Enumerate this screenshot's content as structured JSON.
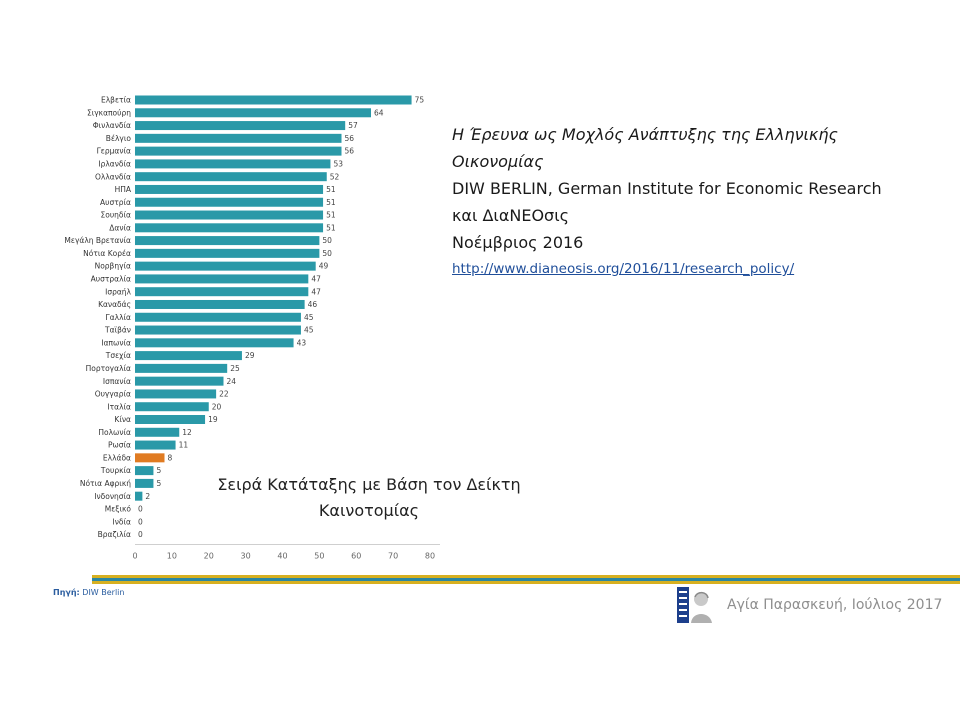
{
  "chart_data": {
    "type": "bar",
    "orientation": "horizontal",
    "categories": [
      "Ελβετία",
      "Σιγκαπούρη",
      "Φινλανδία",
      "Βέλγιο",
      "Γερμανία",
      "Ιρλανδία",
      "Ολλανδία",
      "ΗΠΑ",
      "Αυστρία",
      "Σουηδία",
      "Δανία",
      "Μεγάλη Βρετανία",
      "Νότια Κορέα",
      "Νορβηγία",
      "Αυστραλία",
      "Ισραήλ",
      "Καναδάς",
      "Γαλλία",
      "Ταϊβάν",
      "Ιαπωνία",
      "Τσεχία",
      "Πορτογαλία",
      "Ισπανία",
      "Ουγγαρία",
      "Ιταλία",
      "Κίνα",
      "Πολωνία",
      "Ρωσία",
      "Ελλάδα",
      "Τουρκία",
      "Νότια Αφρική",
      "Ινδονησία",
      "Μεξικό",
      "Ινδία",
      "Βραζιλία"
    ],
    "values": [
      75,
      64,
      57,
      56,
      56,
      53,
      52,
      51,
      51,
      51,
      51,
      50,
      50,
      49,
      47,
      47,
      46,
      45,
      45,
      43,
      29,
      25,
      24,
      22,
      20,
      19,
      12,
      11,
      8,
      5,
      5,
      2,
      0,
      0,
      0
    ],
    "highlight": "Ελλάδα",
    "xlim": [
      0,
      80
    ],
    "xticks": [
      0,
      10,
      20,
      30,
      40,
      50,
      60,
      70,
      80
    ],
    "bar_color": "#2a99a8",
    "highlight_color": "#e07b22",
    "grid": false
  },
  "info": {
    "title_line1": "Η Έρευνα ως Μοχλός Ανάπτυξης της Ελληνικής",
    "title_line2": "Οικονομίας",
    "line3": "DIW BERLIN, German Institute for Economic Research",
    "line4": "και ΔιαΝΕΟσις",
    "line5": "Νοέμβριος 2016",
    "link": "http://www.dianeosis.org/2016/11/research_policy/"
  },
  "caption": {
    "line1": "Σειρά Κατάταξης με Βάση τον Δείκτη",
    "line2": "Καινοτομίας"
  },
  "source": {
    "label": "Πηγή:",
    "text": "DIW Berlin"
  },
  "footer": {
    "text": "Αγία Παρασκευή, Ιούλιος 2017"
  },
  "colors": {
    "stripe_gold": "#d7b020",
    "stripe_teal": "#2a87a3",
    "logo_blue": "#1d3f8c"
  }
}
